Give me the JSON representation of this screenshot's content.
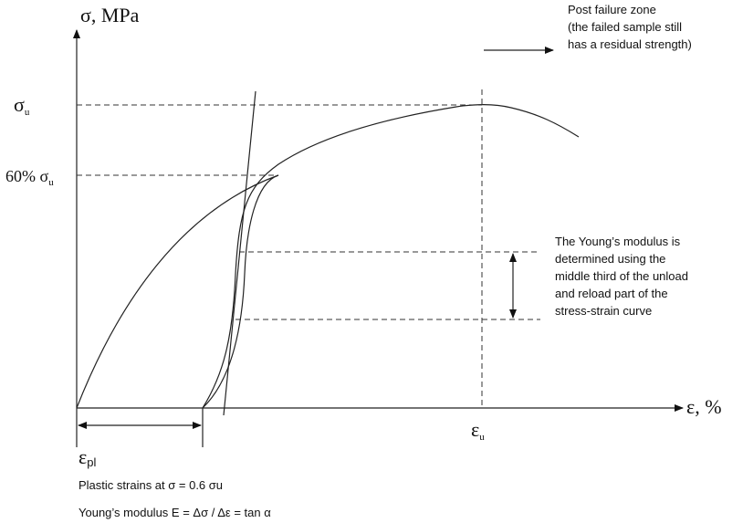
{
  "diagram": {
    "y_axis_label": "σ, MPa",
    "x_axis_label": "ε, %",
    "sigma_u": {
      "symbol": "σ",
      "sub": "u"
    },
    "sigma_60": {
      "prefix": "60% σ",
      "sub": "u"
    },
    "eps_u": {
      "symbol": "ε",
      "sub": "u"
    },
    "eps_pl": {
      "symbol": "ε",
      "sub": "pl"
    },
    "post_failure": [
      "Post failure zone",
      "(the failed sample still",
      "has a residual strength)"
    ],
    "young_note": [
      "The Young’s modulus is",
      "determined using the",
      "middle third of the unload",
      "and reload part of the",
      "stress-strain curve"
    ],
    "plastic_strains": "Plastic strains at σ = 0.6 σu",
    "young_formula": "Young’s modulus E = Δσ / Δε = tan α"
  }
}
